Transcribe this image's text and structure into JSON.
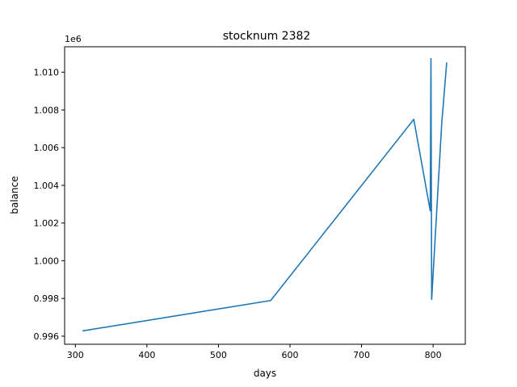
{
  "chart_data": {
    "type": "line",
    "title": "stocknum 2382",
    "xlabel": "days",
    "ylabel": "balance",
    "y_offset_label": "1e6",
    "xlim": [
      285,
      845
    ],
    "ylim": [
      0.99557,
      1.01135
    ],
    "x_ticks": [
      300,
      400,
      500,
      600,
      700,
      800
    ],
    "x_tick_labels": [
      "300",
      "400",
      "500",
      "600",
      "700",
      "800"
    ],
    "y_ticks": [
      0.996,
      0.998,
      1.0,
      1.002,
      1.004,
      1.006,
      1.008,
      1.01
    ],
    "y_tick_labels": [
      "0.996",
      "0.998",
      "1.000",
      "1.002",
      "1.004",
      "1.006",
      "1.008",
      "1.010"
    ],
    "grid": false,
    "line_color": "#1f77b4",
    "series": [
      {
        "x": [
          310,
          573,
          773,
          796,
          797,
          798,
          812,
          819
        ],
        "y": [
          0.99628,
          0.99789,
          1.0075,
          1.00265,
          1.01072,
          0.99795,
          1.00725,
          1.01052
        ]
      }
    ]
  }
}
